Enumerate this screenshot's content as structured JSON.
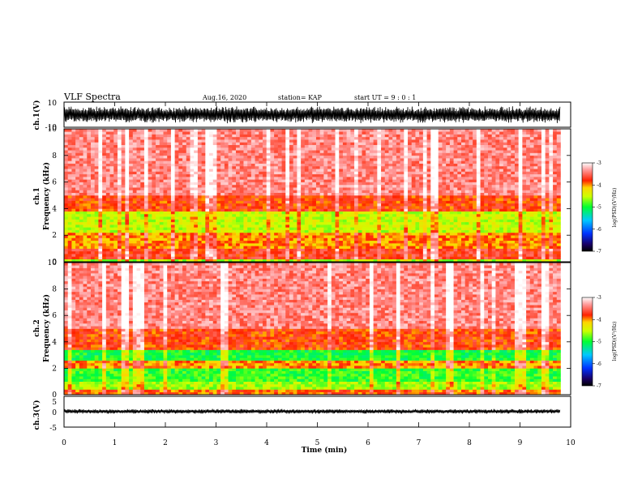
{
  "header": {
    "title": "VLF Spectra",
    "date": "Aug.16, 2020",
    "station": "station= KAP",
    "start": "start  UT =   9 : 0  : 1"
  },
  "chart_data": [
    {
      "type": "line",
      "name": "ch1-waveform",
      "ylabel": "ch.1(V)",
      "ylim": [
        -10,
        10
      ],
      "yticks": [
        "10",
        "-10"
      ],
      "xlim": [
        0,
        10
      ],
      "approx_envelope": [
        -7,
        7
      ],
      "color": "#000000"
    },
    {
      "type": "heatmap",
      "name": "ch1-spectrogram",
      "ylabel": "ch.1\nFrequency (kHz)",
      "ylim": [
        0,
        10
      ],
      "yticks": [
        "0",
        "2",
        "4",
        "6",
        "8",
        "10"
      ],
      "xlim": [
        0,
        10
      ],
      "data_end_min": 9.8,
      "colorbar": {
        "label": "log(PSD)(V²/Hz)",
        "range": [
          -7,
          -3
        ],
        "ticks": [
          "-3",
          "-4",
          "-5",
          "-6",
          "-7"
        ]
      },
      "bands": [
        {
          "fmin": 0.0,
          "fmax": 0.2,
          "level": -4.6
        },
        {
          "fmin": 0.2,
          "fmax": 1.0,
          "level": -3.7
        },
        {
          "fmin": 1.0,
          "fmax": 2.2,
          "level": -4.0
        },
        {
          "fmin": 2.2,
          "fmax": 3.8,
          "level": -4.5
        },
        {
          "fmin": 3.8,
          "fmax": 5.0,
          "level": -3.8
        },
        {
          "fmin": 5.0,
          "fmax": 10.0,
          "level": -3.4
        }
      ]
    },
    {
      "type": "heatmap",
      "name": "ch2-spectrogram",
      "ylabel": "ch.2\nFrequency (kHz)",
      "ylim": [
        0,
        10
      ],
      "yticks": [
        "0",
        "2",
        "4",
        "6",
        "8",
        "10"
      ],
      "xlim": [
        0,
        10
      ],
      "data_end_min": 9.8,
      "colorbar": {
        "label": "log(PSD)(V²/Hz)",
        "range": [
          -7,
          -3
        ],
        "ticks": [
          "-3",
          "-4",
          "-5",
          "-6",
          "-7"
        ]
      },
      "bands": [
        {
          "fmin": 0.0,
          "fmax": 0.4,
          "level": -3.9
        },
        {
          "fmin": 0.4,
          "fmax": 1.0,
          "level": -4.6
        },
        {
          "fmin": 1.0,
          "fmax": 2.0,
          "level": -4.9
        },
        {
          "fmin": 2.0,
          "fmax": 2.6,
          "level": -4.0
        },
        {
          "fmin": 2.6,
          "fmax": 3.4,
          "level": -5.0
        },
        {
          "fmin": 3.4,
          "fmax": 5.0,
          "level": -3.8
        },
        {
          "fmin": 5.0,
          "fmax": 10.0,
          "level": -3.4
        }
      ]
    },
    {
      "type": "line",
      "name": "ch3-waveform",
      "ylabel": "ch.3(V)",
      "ylim": [
        -5,
        5
      ],
      "yticks": [
        "5",
        "0",
        "-5"
      ],
      "xlim": [
        0,
        10
      ],
      "approx_envelope": [
        -0.8,
        0.8
      ],
      "approx_center": 0.1,
      "color": "#000000"
    }
  ],
  "xaxis": {
    "label": "Time (min)",
    "ticks": [
      "0",
      "1",
      "2",
      "3",
      "4",
      "5",
      "6",
      "7",
      "8",
      "9",
      "10"
    ]
  }
}
